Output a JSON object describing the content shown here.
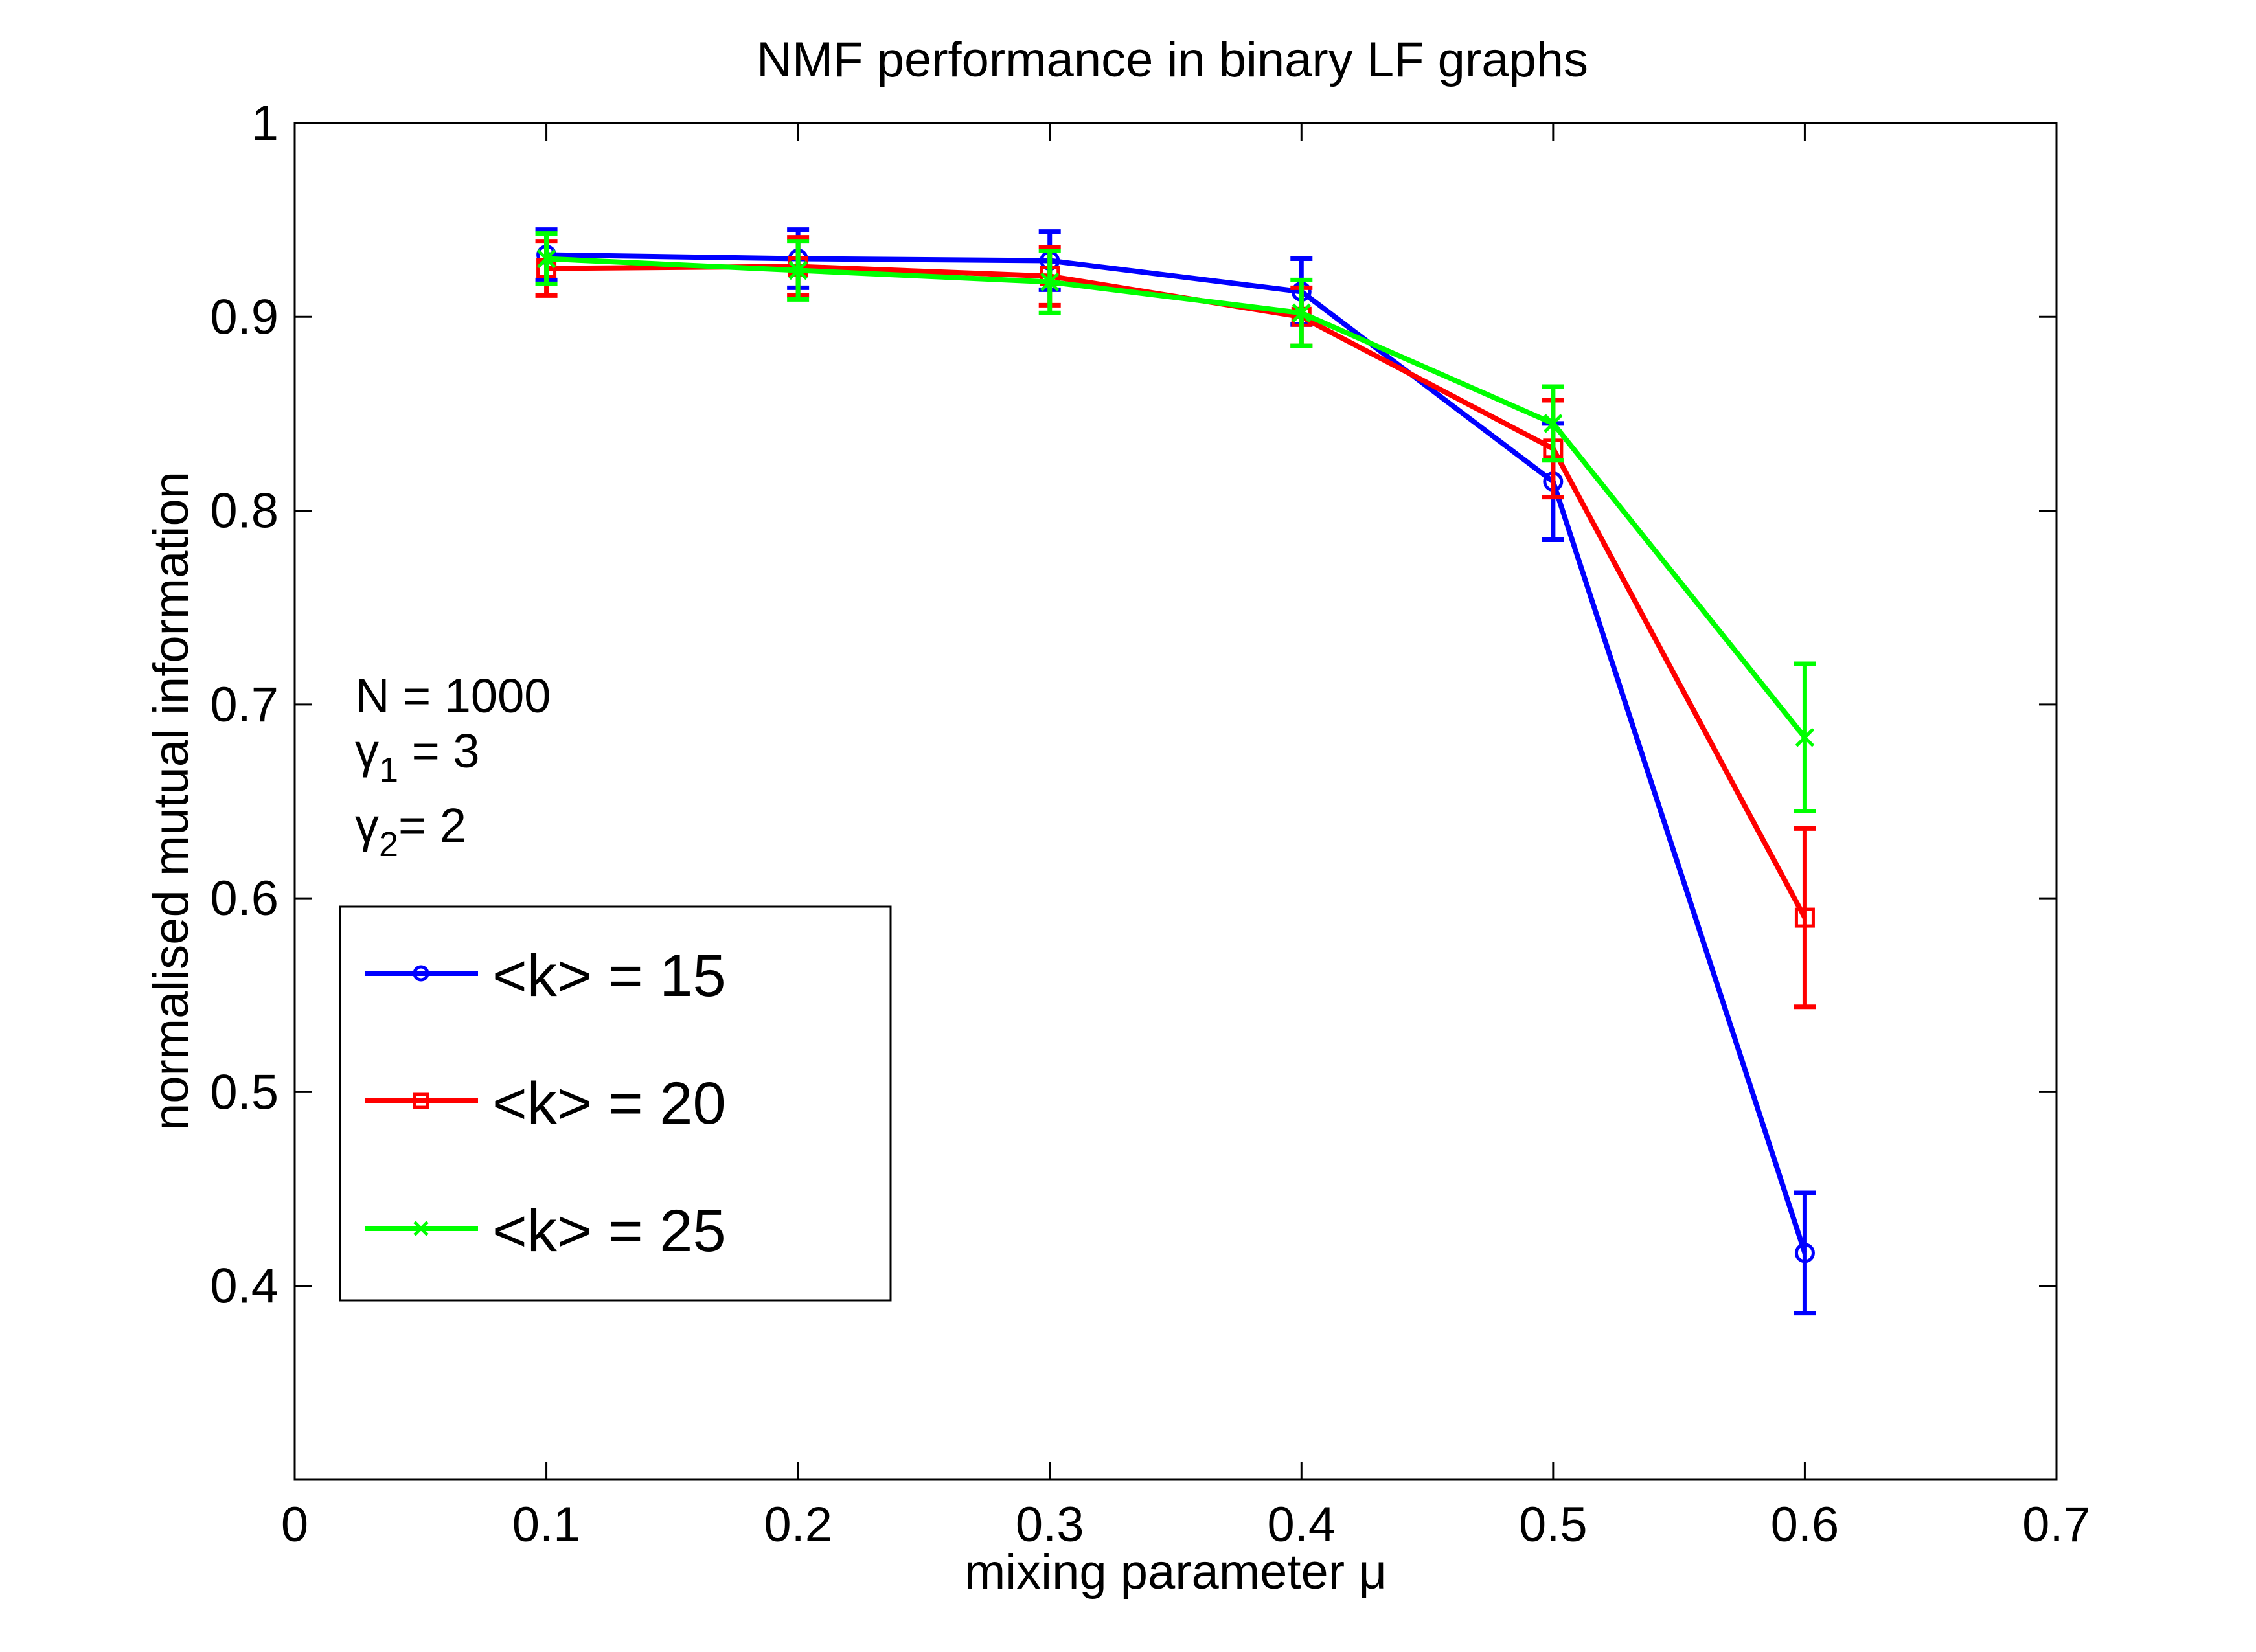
{
  "chart_data": {
    "type": "line",
    "title": "NMF performance in binary LF graphs",
    "xlabel": "mixing parameter μ",
    "ylabel": "normalised mutual information",
    "xlim": [
      0,
      0.7
    ],
    "ylim": [
      0.3,
      1.0
    ],
    "xticks": [
      0,
      0.1,
      0.2,
      0.3,
      0.4,
      0.5,
      0.6,
      0.7
    ],
    "xtick_labels": [
      "0",
      "0.1",
      "0.2",
      "0.3",
      "0.4",
      "0.5",
      "0.6",
      "0.7"
    ],
    "yticks": [
      0.4,
      0.5,
      0.6,
      0.7,
      0.8,
      0.9,
      1.0
    ],
    "ytick_labels": [
      "0.4",
      "0.5",
      "0.6",
      "0.7",
      "0.8",
      "0.9",
      "1"
    ],
    "grid": false,
    "legend_position": "bottom-left",
    "annotation": {
      "n_label": "N = 1000",
      "gamma1_sym": "γ",
      "gamma1_sub": "1",
      "gamma1_rest": " = 3",
      "gamma2_sym": "γ",
      "gamma2_sub": "2",
      "gamma2_rest": "= 2"
    },
    "x": [
      0.1,
      0.2,
      0.3,
      0.4,
      0.5,
      0.6
    ],
    "series": [
      {
        "name": "<k> = 15",
        "color": "#0000ff",
        "marker": "circle",
        "values": [
          0.932,
          0.93,
          0.929,
          0.913,
          0.815,
          0.417
        ],
        "errors": [
          0.013,
          0.015,
          0.015,
          0.017,
          0.03,
          0.031
        ]
      },
      {
        "name": "<k> = 20",
        "color": "#ff0000",
        "marker": "square",
        "values": [
          0.925,
          0.926,
          0.921,
          0.9,
          0.832,
          0.59
        ],
        "errors": [
          0.014,
          0.015,
          0.015,
          0.015,
          0.025,
          0.046
        ]
      },
      {
        "name": "<k> = 25",
        "color": "#00ff00",
        "marker": "x",
        "values": [
          0.93,
          0.924,
          0.918,
          0.902,
          0.845,
          0.683
        ],
        "errors": [
          0.013,
          0.015,
          0.016,
          0.017,
          0.019,
          0.038
        ]
      }
    ]
  }
}
